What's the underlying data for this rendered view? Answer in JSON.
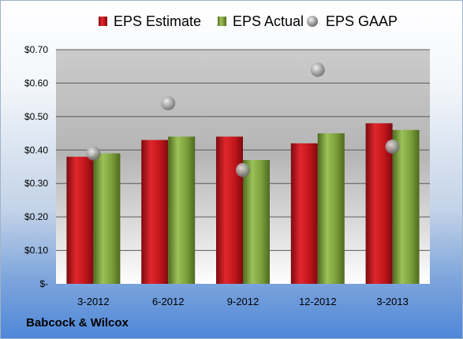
{
  "company": "Babcock & Wilcox",
  "colors": {
    "estimate": "#c0151b",
    "actual": "#7a9d3a",
    "gaap": "#9a9a9a"
  },
  "chart_data": {
    "type": "bar",
    "categories": [
      "3-2012",
      "6-2012",
      "9-2012",
      "12-2012",
      "3-2013"
    ],
    "series": [
      {
        "name": "EPS Estimate",
        "kind": "bar",
        "values": [
          0.38,
          0.43,
          0.44,
          0.42,
          0.48
        ]
      },
      {
        "name": "EPS Actual",
        "kind": "bar",
        "values": [
          0.39,
          0.44,
          0.37,
          0.45,
          0.46
        ]
      },
      {
        "name": "EPS GAAP",
        "kind": "scatter",
        "values": [
          0.39,
          0.54,
          0.34,
          0.64,
          0.41
        ]
      }
    ],
    "yticks": [
      "$-",
      "$0.10",
      "$0.20",
      "$0.30",
      "$0.40",
      "$0.50",
      "$0.60",
      "$0.70"
    ],
    "ylim": [
      0,
      0.7
    ],
    "grid": true,
    "legend_position": "top"
  }
}
